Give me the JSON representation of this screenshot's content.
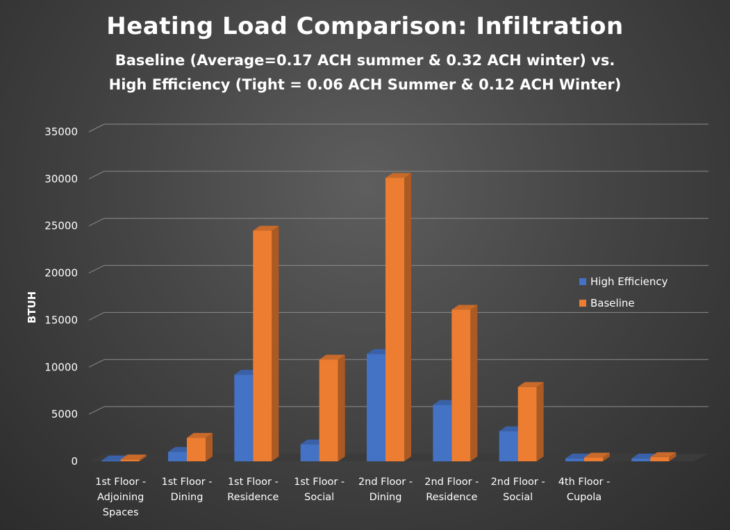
{
  "chart_data": {
    "type": "bar",
    "title": "Heating Load Comparison: Infiltration",
    "subtitle": [
      "Baseline (Average=0.17 ACH summer & 0.32 ACH winter) vs.",
      "High Efficiency (Tight = 0.06 ACH Summer & 0.12 ACH Winter)"
    ],
    "ylabel": "BTUH",
    "xlabel": "",
    "ylim": [
      0,
      35000
    ],
    "yticks": [
      0,
      5000,
      10000,
      15000,
      20000,
      25000,
      30000,
      35000
    ],
    "grid": true,
    "legend_position": "right",
    "categories": [
      "1st Floor -\nAdjoining\nSpaces",
      "1st Floor -\nDining",
      "1st Floor -\nResidence",
      "1st Floor -\nSocial",
      "2nd Floor -\nDining",
      "2nd Floor -\nResidence",
      "2nd Floor -\nSocial",
      "4th Floor -\nCupola",
      ""
    ],
    "series": [
      {
        "name": "High Efficiency",
        "color": "#4472C4",
        "values": [
          100,
          1000,
          9200,
          1800,
          11400,
          6000,
          3200,
          300,
          300
        ]
      },
      {
        "name": "Baseline",
        "color": "#ED7D31",
        "values": [
          200,
          2500,
          24500,
          10800,
          30100,
          16100,
          7900,
          400,
          450
        ]
      }
    ]
  }
}
